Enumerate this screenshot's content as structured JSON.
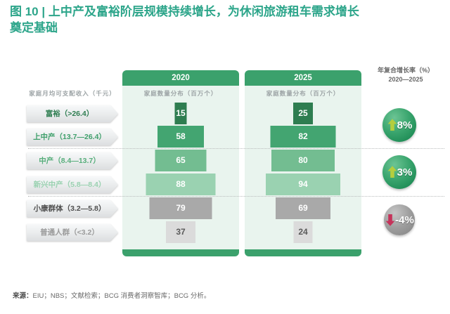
{
  "figure": {
    "title": "图 10 | 上中产及富裕阶层规模持续增长，为休闲旅游租车需求增长\n奠定基础",
    "source_label": "来源：",
    "source_text": "EIU；NBS；文献检索；BCG 消费者洞察智库；BCG 分析。"
  },
  "left_axis": {
    "header": "家庭月均可支配收入（千元）",
    "labels": [
      {
        "text": "富裕（>26.4）",
        "color": "#2E7D50"
      },
      {
        "text": "上中产（13.7—26.4）",
        "color": "#3FA06C"
      },
      {
        "text": "中产（8.4—13.7）",
        "color": "#57AE7B"
      },
      {
        "text": "新兴中产（5.8—8.4）",
        "color": "#9AD2B1"
      },
      {
        "text": "小康群体（3.2—5.8）",
        "color": "#4E4E4E"
      },
      {
        "text": "普通人群（<3.2）",
        "color": "#9B9B9B"
      }
    ]
  },
  "columns": [
    {
      "year": "2020",
      "subtitle": "家庭数量分布（百万个）",
      "values": [
        15,
        58,
        65,
        88,
        79,
        37
      ]
    },
    {
      "year": "2025",
      "subtitle": "家庭数量分布（百万个）",
      "values": [
        25,
        82,
        80,
        94,
        69,
        24
      ]
    }
  ],
  "cagr": {
    "header_line1": "年复合增长率（%）",
    "header_line2": "2020—2025",
    "badges": [
      {
        "value": "8%",
        "direction": "up",
        "circle_color": "green"
      },
      {
        "value": "3%",
        "direction": "up",
        "circle_color": "green"
      },
      {
        "value": "-4%",
        "direction": "down",
        "circle_color": "gray"
      }
    ]
  },
  "theme": {
    "title_color": "#2CA58A",
    "panel_green": "#3BA16C",
    "panel_body_bg": "#E9F4EE",
    "row_colors": [
      "#2E7D50",
      "#43A571",
      "#73BD91",
      "#9AD2B1",
      "#A9A9A9",
      "#DBDBDB"
    ],
    "row_text_colors": [
      "#FFFFFF",
      "#FFFFFF",
      "#FFFFFF",
      "#FFFFFF",
      "#FFFFFF",
      "#5A5A5A"
    ],
    "badge_up_arrow": "#B5CE3E",
    "badge_down_arrow": "#C5335A"
  },
  "chart_data": {
    "type": "bar",
    "title": "图 10 | 上中产及富裕阶层规模持续增长，为休闲旅游租车需求增长奠定基础",
    "categories": [
      "富裕（>26.4）",
      "上中产（13.7—26.4）",
      "中产（8.4—13.7）",
      "新兴中产（5.8—8.4）",
      "小康群体（3.2—5.8）",
      "普通人群（<3.2）"
    ],
    "category_axis_label": "家庭月均可支配收入（千元）",
    "value_axis_label": "家庭数量分布（百万个）",
    "series": [
      {
        "name": "2020",
        "values": [
          15,
          58,
          65,
          88,
          79,
          37
        ]
      },
      {
        "name": "2025",
        "values": [
          25,
          82,
          80,
          94,
          69,
          24
        ]
      }
    ],
    "layout": "population pyramid / funnel, bar width proportional to value, one pyramid per year",
    "annotations": [
      {
        "label": "年复合增长率（%）2020—2025",
        "groups": [
          {
            "categories": [
              "富裕（>26.4）",
              "上中产（13.7—26.4）"
            ],
            "value": "8%",
            "direction": "up"
          },
          {
            "categories": [
              "中产（8.4—13.7）",
              "新兴中产（5.8—8.4）"
            ],
            "value": "3%",
            "direction": "up"
          },
          {
            "categories": [
              "小康群体（3.2—5.8）",
              "普通人群（<3.2）"
            ],
            "value": "-4%",
            "direction": "down"
          }
        ]
      }
    ],
    "source": "来源：EIU；NBS；文献检索；BCG 消费者洞察智库；BCG 分析。"
  }
}
